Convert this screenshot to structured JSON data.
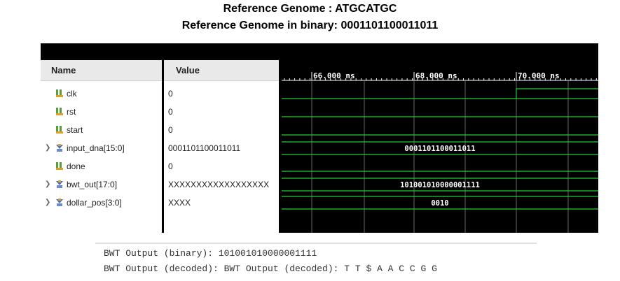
{
  "header": {
    "title": "Reference Genome : ATGCATGC",
    "subtitle": "Reference Genome in binary: 0001101100011011"
  },
  "columns": {
    "name": "Name",
    "value": "Value"
  },
  "signals": [
    {
      "name": "clk",
      "value": "0",
      "type": "bit",
      "expandable": false
    },
    {
      "name": "rst",
      "value": "0",
      "type": "bit",
      "expandable": false
    },
    {
      "name": "start",
      "value": "0",
      "type": "bit",
      "expandable": false
    },
    {
      "name": "input_dna[15:0]",
      "value": "0001101100011011",
      "type": "bus",
      "expandable": true,
      "wave_label": "0001101100011011"
    },
    {
      "name": "done",
      "value": "0",
      "type": "bit",
      "expandable": false
    },
    {
      "name": "bwt_out[17:0]",
      "value": "XXXXXXXXXXXXXXXXXX",
      "type": "bus",
      "expandable": true,
      "wave_label": "101001010000001111"
    },
    {
      "name": "dollar_pos[3:0]",
      "value": "XXXX",
      "type": "bus",
      "expandable": true,
      "wave_label": "0010"
    }
  ],
  "timeline": {
    "labels": [
      "66.000 ns",
      "68.000 ns",
      "70.000 ns"
    ]
  },
  "console": {
    "line1": "BWT Output (binary): 101001010000001111",
    "line2": "BWT Output (decoded): BWT Output (decoded): T T $ A A C C G G"
  },
  "colors": {
    "waveform": "#22cc33",
    "grid": "#666666",
    "timeline_text": "#ffffff",
    "panel_bg": "#000000"
  }
}
